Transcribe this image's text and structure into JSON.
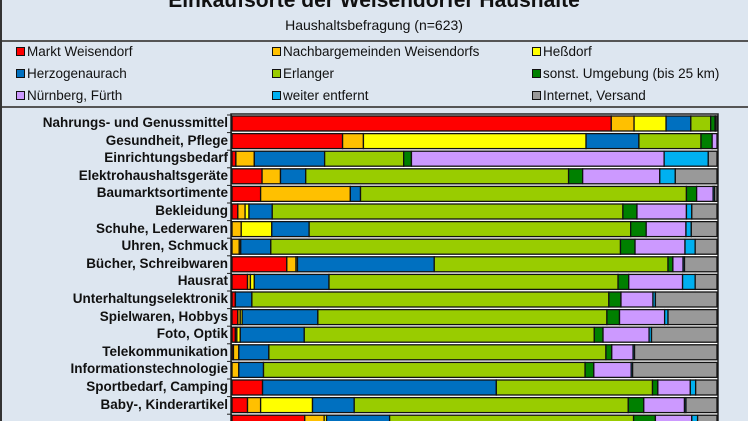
{
  "chart_data": {
    "type": "bar",
    "orientation": "horizontal",
    "stacked": "percent",
    "title": "Einkaufsorte der Weisendorfer Haushalte",
    "subtitle": "Haushaltsbefragung  (n=623)",
    "xlabel": "",
    "ylabel": "",
    "xlim": [
      0,
      100
    ],
    "legend_position": "top",
    "series_names": [
      "Markt Weisendorf",
      "Nachbargemeinden Weisendorfs",
      "Heßdorf",
      "Herzogenaurach",
      "Erlanger",
      "sonst. Umgebung (bis 25 km)",
      "Nürnberg, Fürth",
      "weiter entfernt",
      "Internet, Versand"
    ],
    "colors": [
      "#ff0000",
      "#ffc000",
      "#ffff00",
      "#0070c0",
      "#99cc00",
      "#008000",
      "#cc99ff",
      "#00b0f0",
      "#999999"
    ],
    "categories": [
      "Nahrungs- und Genussmittel",
      "Gesundheit, Pflege",
      "Einrichtungsbedarf",
      "Elektrohaushaltsgeräte",
      "Baumarktsortimente",
      "Bekleidung",
      "Schuhe, Lederwaren",
      "Uhren, Schmuck",
      "Bücher, Schreibwaren",
      "Hausrat",
      "Unterhaltungselektronik",
      "Spielwaren, Hobbys",
      "Foto, Optik",
      "Telekommunikation",
      "Informationstechnologie",
      "Sportbedarf, Camping",
      "Baby-, Kinderartikel",
      ""
    ],
    "values": [
      [
        78.2,
        4.7,
        6.6,
        5.1,
        4.1,
        0.9,
        0.1,
        0.0,
        0.3
      ],
      [
        22.8,
        4.3,
        45.9,
        10.9,
        12.8,
        2.3,
        1.0,
        0.0,
        0.0
      ],
      [
        0.8,
        3.8,
        0.0,
        14.5,
        16.3,
        1.6,
        52.1,
        9.1,
        1.8
      ],
      [
        6.2,
        3.8,
        0.0,
        5.2,
        54.2,
        2.9,
        15.9,
        3.2,
        8.6
      ],
      [
        5.9,
        18.5,
        0.0,
        2.1,
        67.2,
        2.1,
        3.4,
        0.3,
        0.5
      ],
      [
        1.2,
        1.5,
        0.8,
        4.8,
        72.3,
        2.9,
        10.2,
        1.1,
        5.2
      ],
      [
        0.0,
        1.9,
        6.3,
        7.7,
        66.3,
        3.2,
        8.2,
        1.1,
        5.3
      ],
      [
        0.0,
        1.5,
        0.3,
        6.2,
        72.1,
        3.0,
        10.3,
        2.1,
        4.5
      ],
      [
        11.3,
        1.9,
        0.3,
        28.2,
        48.2,
        1.0,
        2.1,
        0.3,
        6.7
      ],
      [
        3.2,
        0.6,
        0.8,
        15.4,
        59.6,
        2.2,
        11.1,
        2.6,
        4.5
      ],
      [
        0.7,
        0.0,
        0.0,
        3.4,
        73.6,
        2.5,
        6.6,
        0.5,
        12.7
      ],
      [
        1.2,
        0.5,
        0.4,
        15.6,
        59.6,
        2.6,
        9.3,
        0.7,
        10.1
      ],
      [
        0.7,
        0.3,
        0.7,
        13.2,
        59.8,
        1.8,
        9.5,
        0.5,
        13.5
      ],
      [
        0.3,
        1.1,
        0.0,
        6.2,
        69.5,
        1.2,
        4.4,
        0.3,
        17.0
      ],
      [
        0.0,
        1.4,
        0.0,
        5.1,
        66.3,
        1.8,
        7.7,
        0.3,
        17.4
      ],
      [
        6.3,
        0.0,
        0.0,
        48.2,
        32.2,
        1.1,
        6.7,
        1.1,
        4.4
      ],
      [
        3.2,
        2.7,
        10.7,
        8.6,
        56.5,
        3.2,
        8.4,
        0.3,
        6.4
      ],
      [
        15.0,
        4.0,
        0.5,
        13.0,
        50.3,
        4.5,
        7.5,
        1.2,
        4.0
      ]
    ]
  }
}
